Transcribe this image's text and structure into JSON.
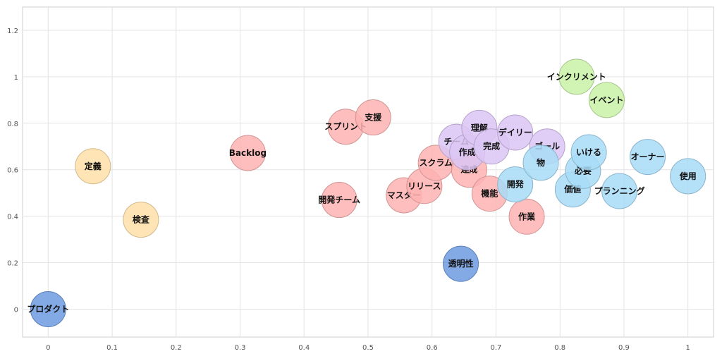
{
  "chart_data": {
    "type": "scatter",
    "title": "",
    "xlabel": "",
    "ylabel": "",
    "xlim": [
      -0.04,
      1.04
    ],
    "ylim": [
      -0.12,
      1.3
    ],
    "x_ticks": [
      0,
      0.1,
      0.2,
      0.3,
      0.4,
      0.5,
      0.6,
      0.7,
      0.8,
      0.9,
      1
    ],
    "x_tick_labels": [
      "0",
      "0.1",
      "0.2",
      "0.3",
      "0.4",
      "0.5",
      "0.6",
      "0.7",
      "0.8",
      "0.9",
      "1"
    ],
    "y_ticks": [
      0,
      0.2,
      0.4,
      0.6,
      0.8,
      1,
      1.2
    ],
    "y_tick_labels": [
      "0",
      "0.2",
      "0.4",
      "0.6",
      "0.8",
      "1",
      "1.2"
    ],
    "grid": true,
    "legend": "none",
    "colors": {
      "blue": "#6f9be0",
      "orange": "#ffe0a8",
      "pink": "#ffb3b3",
      "purple": "#dcc6f5",
      "lightblue": "#a8dcf7",
      "green": "#c9f2a8"
    },
    "points": [
      {
        "label": "プロダクト",
        "x": 0.0,
        "y": 0.0,
        "color": "#6f9be0"
      },
      {
        "label": "透明性",
        "x": 0.645,
        "y": 0.195,
        "color": "#6f9be0"
      },
      {
        "label": "定義",
        "x": 0.07,
        "y": 0.615,
        "color": "#ffe0a8"
      },
      {
        "label": "検査",
        "x": 0.145,
        "y": 0.385,
        "color": "#ffe0a8"
      },
      {
        "label": "Backlog",
        "x": 0.312,
        "y": 0.672,
        "color": "#ffb3b3"
      },
      {
        "label": "開発チーム",
        "x": 0.455,
        "y": 0.47,
        "color": "#ffb3b3"
      },
      {
        "label": "スプリント",
        "x": 0.465,
        "y": 0.785,
        "color": "#ffb3b3"
      },
      {
        "label": "支援",
        "x": 0.508,
        "y": 0.825,
        "color": "#ffb3b3"
      },
      {
        "label": "マスター",
        "x": 0.556,
        "y": 0.49,
        "color": "#ffb3b3"
      },
      {
        "label": "リリース",
        "x": 0.588,
        "y": 0.53,
        "color": "#ffb3b3"
      },
      {
        "label": "スクラム",
        "x": 0.606,
        "y": 0.63,
        "color": "#ffb3b3"
      },
      {
        "label": "達成",
        "x": 0.658,
        "y": 0.6,
        "color": "#ffb3b3"
      },
      {
        "label": "機能",
        "x": 0.69,
        "y": 0.497,
        "color": "#ffb3b3"
      },
      {
        "label": "作業",
        "x": 0.748,
        "y": 0.398,
        "color": "#ffb3b3"
      },
      {
        "label": "チーム",
        "x": 0.638,
        "y": 0.72,
        "color": "#dcc6f5"
      },
      {
        "label": "作成",
        "x": 0.655,
        "y": 0.675,
        "color": "#dcc6f5"
      },
      {
        "label": "理解",
        "x": 0.674,
        "y": 0.78,
        "color": "#dcc6f5"
      },
      {
        "label": "完成",
        "x": 0.693,
        "y": 0.7,
        "color": "#dcc6f5"
      },
      {
        "label": "デイリー",
        "x": 0.73,
        "y": 0.76,
        "color": "#dcc6f5"
      },
      {
        "label": "ゴール",
        "x": 0.78,
        "y": 0.7,
        "color": "#dcc6f5"
      },
      {
        "label": "開発",
        "x": 0.73,
        "y": 0.537,
        "color": "#a8dcf7"
      },
      {
        "label": "物",
        "x": 0.77,
        "y": 0.63,
        "color": "#a8dcf7"
      },
      {
        "label": "価値",
        "x": 0.82,
        "y": 0.515,
        "color": "#a8dcf7"
      },
      {
        "label": "必要",
        "x": 0.836,
        "y": 0.595,
        "color": "#a8dcf7"
      },
      {
        "label": "いける",
        "x": 0.845,
        "y": 0.675,
        "color": "#a8dcf7"
      },
      {
        "label": "プランニング",
        "x": 0.893,
        "y": 0.508,
        "color": "#a8dcf7"
      },
      {
        "label": "オーナー",
        "x": 0.937,
        "y": 0.655,
        "color": "#a8dcf7"
      },
      {
        "label": "使用",
        "x": 1.0,
        "y": 0.572,
        "color": "#a8dcf7"
      },
      {
        "label": "インクリメント",
        "x": 0.826,
        "y": 1.0,
        "color": "#c9f2a8"
      },
      {
        "label": "イベント",
        "x": 0.873,
        "y": 0.9,
        "color": "#c9f2a8"
      }
    ]
  }
}
